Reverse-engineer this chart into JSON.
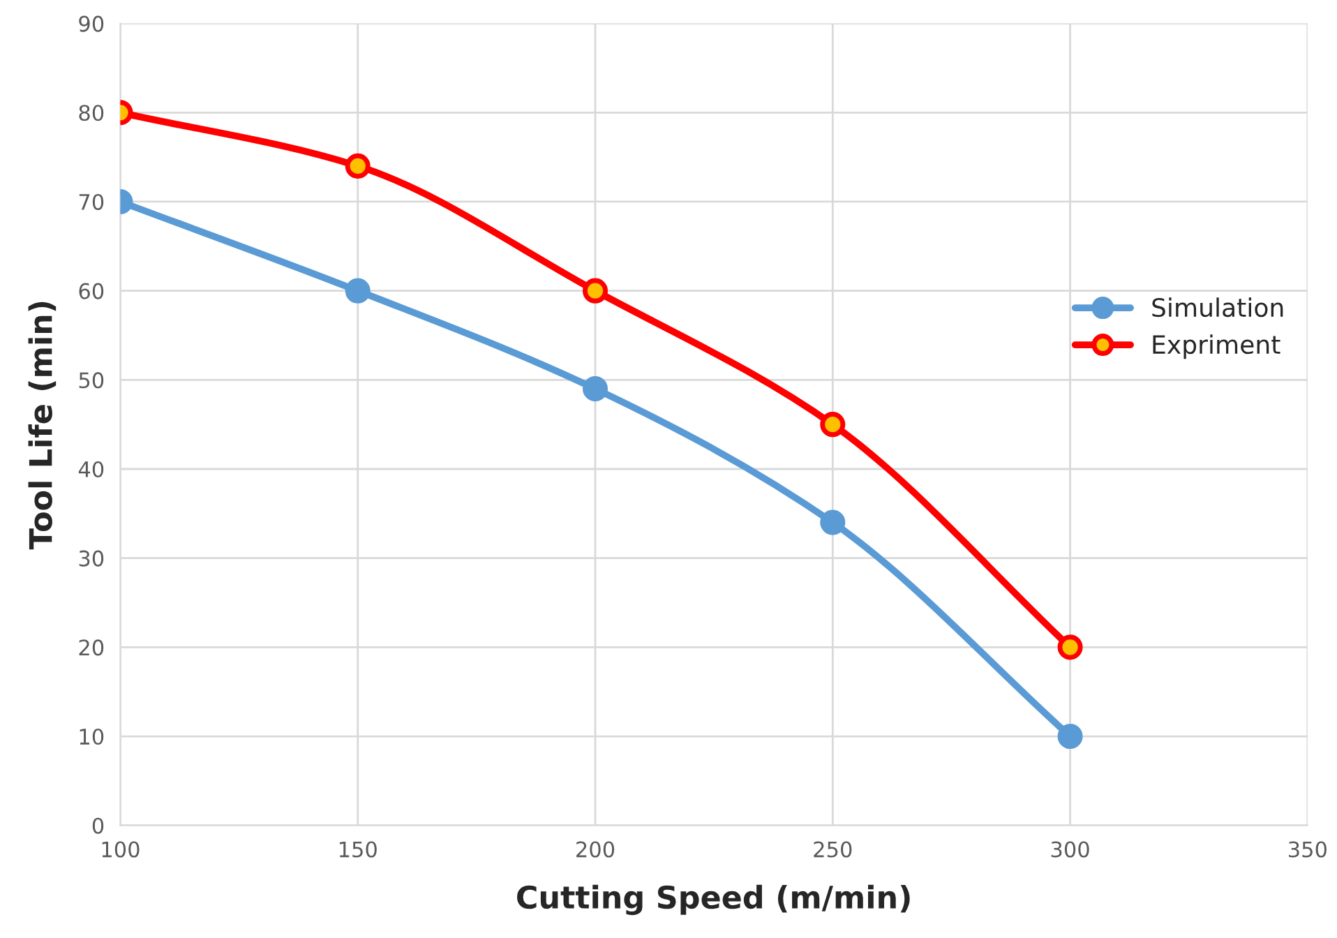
{
  "chart_data": {
    "type": "line",
    "xlabel": "Cutting Speed (m/min)",
    "ylabel": "Tool Life (min)",
    "x": [
      100,
      150,
      200,
      250,
      300
    ],
    "series": [
      {
        "name": "Simulation",
        "color": "#5b9bd5",
        "values": [
          70,
          60,
          49,
          34,
          10
        ]
      },
      {
        "name": "Expriment",
        "color": "#ff0000",
        "values": [
          80,
          74,
          60,
          45,
          20
        ]
      }
    ],
    "xlim": [
      100,
      350
    ],
    "xticks": [
      100,
      150,
      200,
      250,
      300,
      350
    ],
    "ylim": [
      0,
      90
    ],
    "yticks": [
      0,
      10,
      20,
      30,
      40,
      50,
      60,
      70,
      80,
      90
    ],
    "grid": true,
    "legend": "right",
    "marker": "circle",
    "line_style": "solid"
  }
}
